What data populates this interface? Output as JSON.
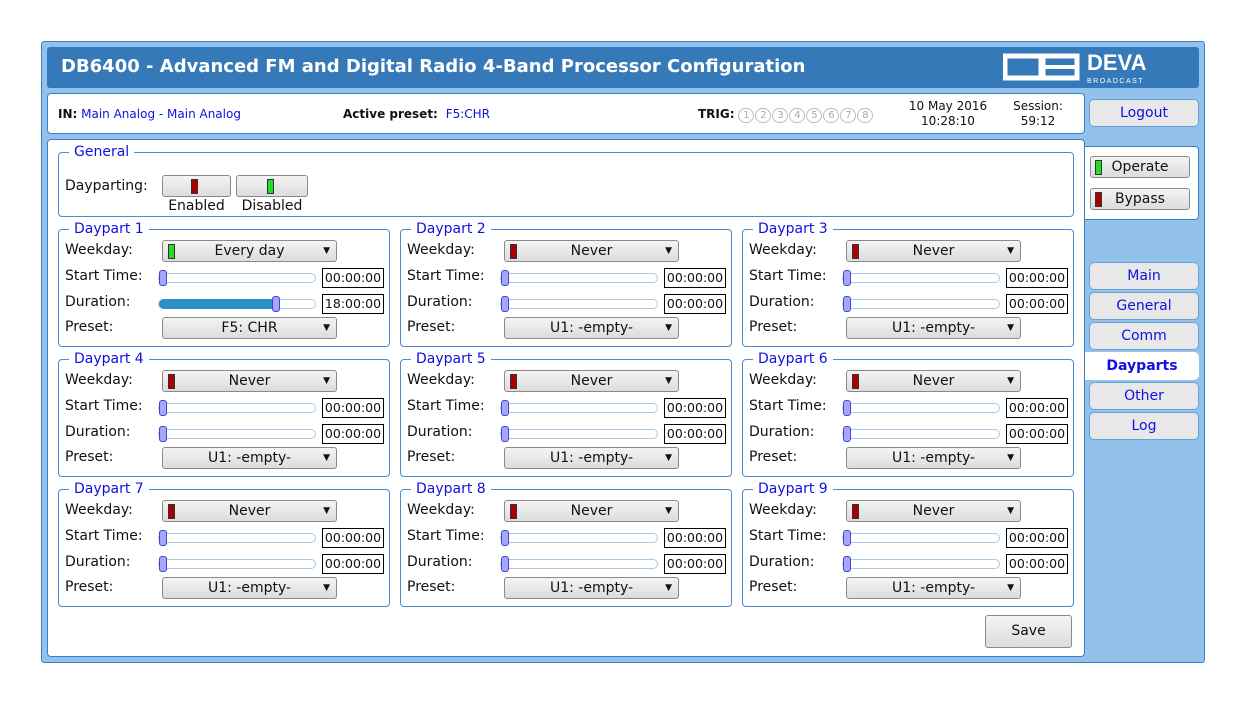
{
  "header": {
    "title": "DB6400 - Advanced FM and Digital Radio 4-Band Processor Configuration",
    "logo_text": "DEVA BROADCAST"
  },
  "info": {
    "in_label": "IN:",
    "in_value": "Main Analog - Main Analog",
    "preset_label": "Active preset:",
    "preset_value": "F5:CHR",
    "trig_label": "TRIG:",
    "trig": [
      "1",
      "2",
      "3",
      "4",
      "5",
      "6",
      "7",
      "8"
    ],
    "date": "10 May 2016",
    "time": "10:28:10",
    "session_label": "Session:",
    "session_value": "59:12"
  },
  "logout": "Logout",
  "side": {
    "operate": "Operate",
    "bypass": "Bypass",
    "operate_led": "#22dd22",
    "bypass_led": "#aa0000"
  },
  "nav": [
    {
      "label": "Main"
    },
    {
      "label": "General"
    },
    {
      "label": "Comm"
    },
    {
      "label": "Dayparts",
      "active": true
    },
    {
      "label": "Other"
    },
    {
      "label": "Log"
    }
  ],
  "general": {
    "legend": "General",
    "dayparting_label": "Dayparting:",
    "enabled": "Enabled",
    "disabled": "Disabled"
  },
  "labels": {
    "weekday": "Weekday:",
    "start": "Start Time:",
    "duration": "Duration:",
    "preset": "Preset:"
  },
  "dayparts": [
    {
      "title": "Daypart 1",
      "weekday": "Every day",
      "led": "#22dd22",
      "start": "00:00:00",
      "start_frac": 0,
      "duration": "18:00:00",
      "duration_frac": 0.75,
      "preset": "F5: CHR"
    },
    {
      "title": "Daypart 2",
      "weekday": "Never",
      "led": "#aa0000",
      "start": "00:00:00",
      "start_frac": 0,
      "duration": "00:00:00",
      "duration_frac": 0,
      "preset": "U1: -empty-"
    },
    {
      "title": "Daypart 3",
      "weekday": "Never",
      "led": "#aa0000",
      "start": "00:00:00",
      "start_frac": 0,
      "duration": "00:00:00",
      "duration_frac": 0,
      "preset": "U1: -empty-"
    },
    {
      "title": "Daypart 4",
      "weekday": "Never",
      "led": "#aa0000",
      "start": "00:00:00",
      "start_frac": 0,
      "duration": "00:00:00",
      "duration_frac": 0,
      "preset": "U1: -empty-"
    },
    {
      "title": "Daypart 5",
      "weekday": "Never",
      "led": "#aa0000",
      "start": "00:00:00",
      "start_frac": 0,
      "duration": "00:00:00",
      "duration_frac": 0,
      "preset": "U1: -empty-"
    },
    {
      "title": "Daypart 6",
      "weekday": "Never",
      "led": "#aa0000",
      "start": "00:00:00",
      "start_frac": 0,
      "duration": "00:00:00",
      "duration_frac": 0,
      "preset": "U1: -empty-"
    },
    {
      "title": "Daypart 7",
      "weekday": "Never",
      "led": "#aa0000",
      "start": "00:00:00",
      "start_frac": 0,
      "duration": "00:00:00",
      "duration_frac": 0,
      "preset": "U1: -empty-"
    },
    {
      "title": "Daypart 8",
      "weekday": "Never",
      "led": "#aa0000",
      "start": "00:00:00",
      "start_frac": 0,
      "duration": "00:00:00",
      "duration_frac": 0,
      "preset": "U1: -empty-"
    },
    {
      "title": "Daypart 9",
      "weekday": "Never",
      "led": "#aa0000",
      "start": "00:00:00",
      "start_frac": 0,
      "duration": "00:00:00",
      "duration_frac": 0,
      "preset": "U1: -empty-"
    }
  ],
  "save": "Save"
}
